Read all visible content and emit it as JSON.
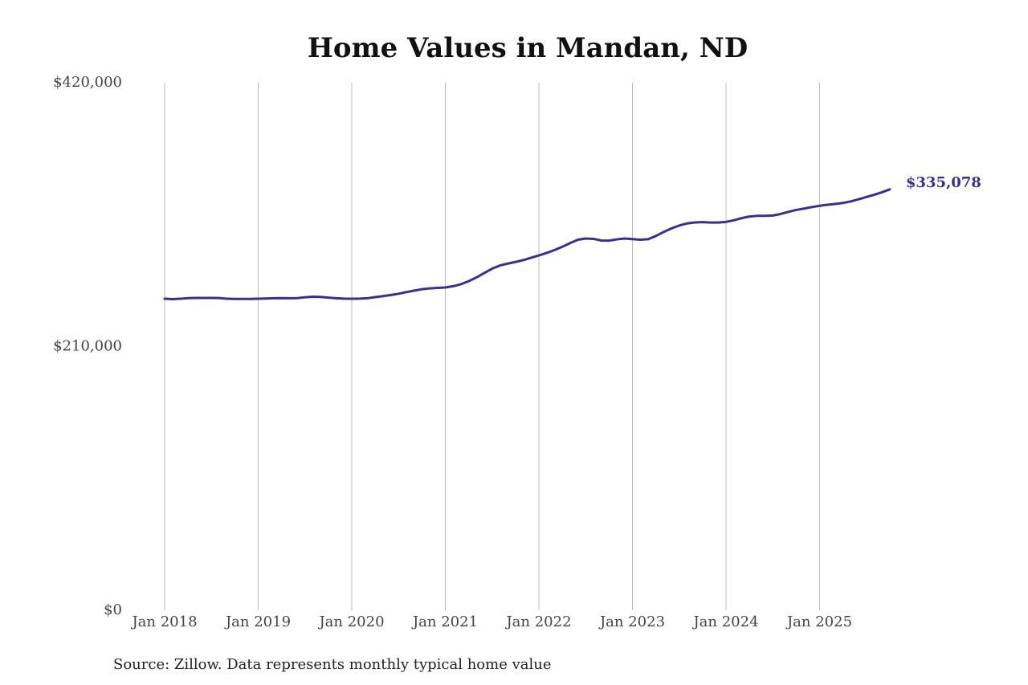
{
  "chart_data": {
    "type": "line",
    "title": "Home Values in Mandan, ND",
    "source": "Source: Zillow. Data represents monthly typical home value",
    "color": "#37308f",
    "x": [
      "2018-01",
      "2018-02",
      "2018-03",
      "2018-04",
      "2018-05",
      "2018-06",
      "2018-07",
      "2018-08",
      "2018-09",
      "2018-10",
      "2018-11",
      "2018-12",
      "2019-01",
      "2019-02",
      "2019-03",
      "2019-04",
      "2019-05",
      "2019-06",
      "2019-07",
      "2019-08",
      "2019-09",
      "2019-10",
      "2019-11",
      "2019-12",
      "2020-01",
      "2020-02",
      "2020-03",
      "2020-04",
      "2020-05",
      "2020-06",
      "2020-07",
      "2020-08",
      "2020-09",
      "2020-10",
      "2020-11",
      "2020-12",
      "2021-01",
      "2021-02",
      "2021-03",
      "2021-04",
      "2021-05",
      "2021-06",
      "2021-07",
      "2021-08",
      "2021-09",
      "2021-10",
      "2021-11",
      "2021-12",
      "2022-01",
      "2022-02",
      "2022-03",
      "2022-04",
      "2022-05",
      "2022-06",
      "2022-07",
      "2022-08",
      "2022-09",
      "2022-10",
      "2022-11",
      "2022-12",
      "2023-01",
      "2023-02",
      "2023-03",
      "2023-04",
      "2023-05",
      "2023-06",
      "2023-07",
      "2023-08",
      "2023-09",
      "2023-10",
      "2023-11",
      "2023-12",
      "2024-01",
      "2024-02",
      "2024-03",
      "2024-04",
      "2024-05",
      "2024-06",
      "2024-07",
      "2024-08",
      "2024-09",
      "2024-10",
      "2024-11",
      "2024-12",
      "2025-01",
      "2025-02",
      "2025-03",
      "2025-04",
      "2025-05",
      "2025-06",
      "2025-07",
      "2025-08",
      "2025-09",
      "2025-10"
    ],
    "values": [
      248000,
      247700,
      248000,
      248500,
      248700,
      248700,
      248700,
      248600,
      248000,
      247900,
      247900,
      247900,
      248000,
      248200,
      248400,
      248500,
      248400,
      248500,
      249200,
      249600,
      249500,
      248900,
      248400,
      248100,
      248000,
      248100,
      248400,
      249300,
      250100,
      251000,
      252000,
      253300,
      254500,
      255600,
      256300,
      256700,
      257000,
      258000,
      259600,
      262000,
      265000,
      268500,
      272000,
      274500,
      276000,
      277300,
      278800,
      280700,
      282500,
      284500,
      286800,
      289400,
      292300,
      295000,
      296000,
      295700,
      294400,
      294300,
      295300,
      296000,
      295500,
      295000,
      295400,
      298000,
      301200,
      304000,
      306300,
      308000,
      308800,
      309000,
      308700,
      308700,
      309200,
      310500,
      312200,
      313500,
      314000,
      314000,
      314300,
      315500,
      317200,
      318700,
      319800,
      321000,
      322000,
      322800,
      323500,
      324300,
      325500,
      327200,
      329000,
      330800,
      332800,
      335078
    ],
    "value_labels": [
      null,
      null,
      null,
      null,
      null,
      null,
      null,
      null,
      null,
      null,
      null,
      null,
      null,
      null,
      null,
      null,
      null,
      null,
      null,
      null,
      null,
      null,
      null,
      null,
      null,
      null,
      null,
      null,
      null,
      null,
      null,
      null,
      null,
      null,
      null,
      null,
      null,
      null,
      null,
      null,
      null,
      null,
      null,
      null,
      null,
      null,
      null,
      null,
      null,
      null,
      null,
      null,
      null,
      null,
      null,
      null,
      null,
      null,
      null,
      null,
      null,
      null,
      null,
      null,
      null,
      null,
      null,
      null,
      null,
      null,
      null,
      null,
      null,
      null,
      null,
      null,
      null,
      null,
      null,
      null,
      null,
      null,
      null,
      null,
      null,
      null,
      null,
      null,
      null,
      null,
      null,
      null,
      null,
      "$335,078"
    ],
    "xticks": [
      {
        "value": "2018-01",
        "label": "Jan 2018"
      },
      {
        "value": "2019-01",
        "label": "Jan 2019"
      },
      {
        "value": "2020-01",
        "label": "Jan 2020"
      },
      {
        "value": "2021-01",
        "label": "Jan 2021"
      },
      {
        "value": "2022-01",
        "label": "Jan 2022"
      },
      {
        "value": "2023-01",
        "label": "Jan 2023"
      },
      {
        "value": "2024-01",
        "label": "Jan 2024"
      },
      {
        "value": "2025-01",
        "label": "Jan 2025"
      }
    ],
    "ylim": [
      0,
      420000
    ],
    "yticks": [
      {
        "value": 0,
        "label": "$0"
      },
      {
        "value": 210000,
        "label": "$210,000"
      },
      {
        "value": 420000,
        "label": "$420,000"
      }
    ],
    "grid": "x"
  }
}
